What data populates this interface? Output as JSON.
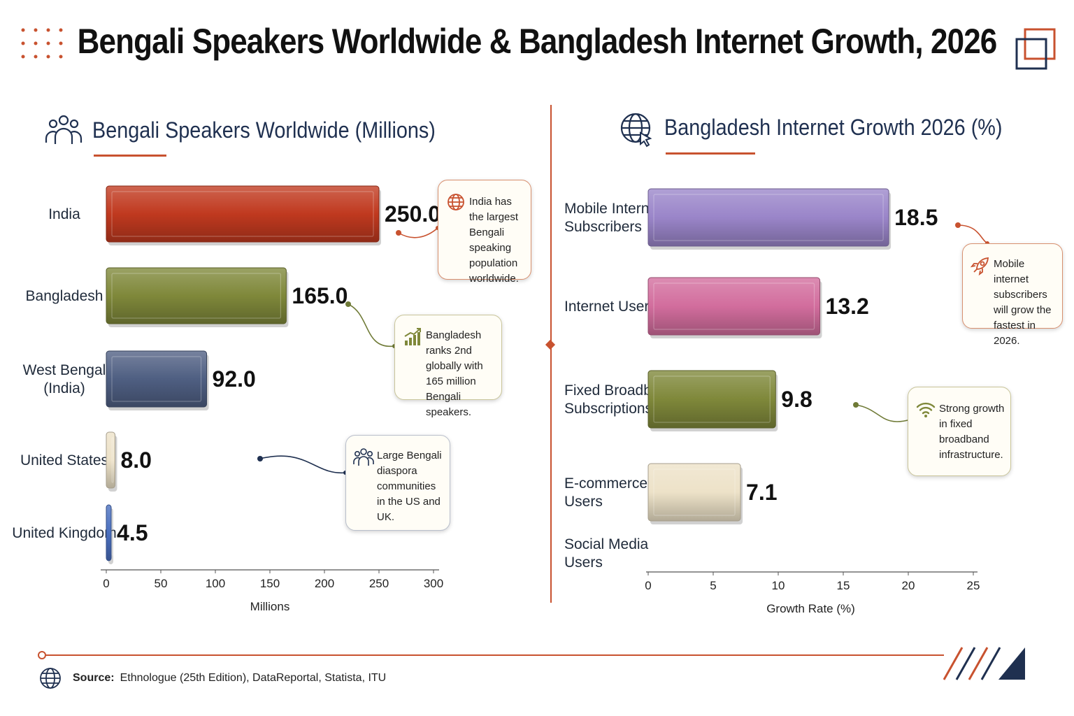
{
  "header": {
    "title": "Bengali Speakers Worldwide & Bangladesh Internet Growth, 2026",
    "left_icon": "dot-grid-icon",
    "right_icon": "overlapping-squares-icon"
  },
  "colors": {
    "accent": "#c8522f",
    "navy": "#1f3050"
  },
  "left_panel": {
    "title": "Bengali Speakers Worldwide (Millions)",
    "icon": "people-group-icon"
  },
  "right_panel": {
    "title": "Bangladesh Internet Growth 2026 (%)",
    "icon": "globe-cursor-icon"
  },
  "chart_data": [
    {
      "type": "bar",
      "orientation": "horizontal",
      "title": "Bengali Speakers Worldwide (Millions)",
      "categories": [
        "India",
        "Bangladesh",
        "West Bengal (India)",
        "United States",
        "United Kingdom"
      ],
      "values": [
        250.0,
        165.0,
        92.0,
        8.0,
        4.5
      ],
      "value_labels": [
        "250.0",
        "165.0",
        "92.0",
        "8.0",
        "4.5"
      ],
      "bar_colors": [
        "#c0391f",
        "#7f883a",
        "#4f5f82",
        "#ede2c8",
        "#4a6fbf"
      ],
      "xlabel": "Millions",
      "xlim": [
        0,
        300
      ],
      "xticks": [
        "0",
        "50",
        "100",
        "150",
        "200",
        "250",
        "300"
      ],
      "grid": false,
      "annotations": [
        {
          "text": "India has the largest Bengali speaking population worldwide.",
          "icon": "globe-icon",
          "target": "India"
        },
        {
          "text": "Bangladesh ranks 2nd globally with 165 million Bengali speakers.",
          "icon": "rising-bar-chart-icon",
          "target": "Bangladesh"
        },
        {
          "text": "Large Bengali diaspora communities in the US and UK.",
          "icon": "people-group-icon",
          "target": "United States"
        }
      ]
    },
    {
      "type": "bar",
      "orientation": "horizontal",
      "title": "Bangladesh Internet Growth 2026 (%)",
      "categories": [
        "Mobile Internet Subscribers",
        "Internet Users",
        "Fixed Broadband Subscriptions",
        "E-commerce Users",
        "Social Media Users"
      ],
      "values": [
        18.5,
        13.2,
        9.8,
        7.1,
        null
      ],
      "value_labels": [
        "18.5",
        "13.2",
        "9.8",
        "7.1",
        ""
      ],
      "bar_colors": [
        "#9a85c9",
        "#d26d9d",
        "#7f883a",
        "#ede2c8",
        null
      ],
      "highlight": {
        "category": "Mobile Internet Subscribers",
        "color": "#d42020"
      },
      "xlabel": "Growth Rate (%)",
      "xlim": [
        0,
        25
      ],
      "xticks": [
        "0",
        "5",
        "10",
        "15",
        "20",
        "25"
      ],
      "grid": false,
      "annotations": [
        {
          "text": "Mobile internet subscribers will grow the fastest in 2026.",
          "icon": "rocket-icon",
          "target": "Mobile Internet Subscribers"
        },
        {
          "text": "Strong growth in fixed broadband infrastructure.",
          "icon": "wifi-icon",
          "target": "Fixed Broadband Subscriptions"
        }
      ]
    }
  ],
  "footer": {
    "source_label": "Source:",
    "source_text": "Ethnologue (25th Edition), DataReportal, Statista, ITU",
    "icon": "globe-icon"
  }
}
